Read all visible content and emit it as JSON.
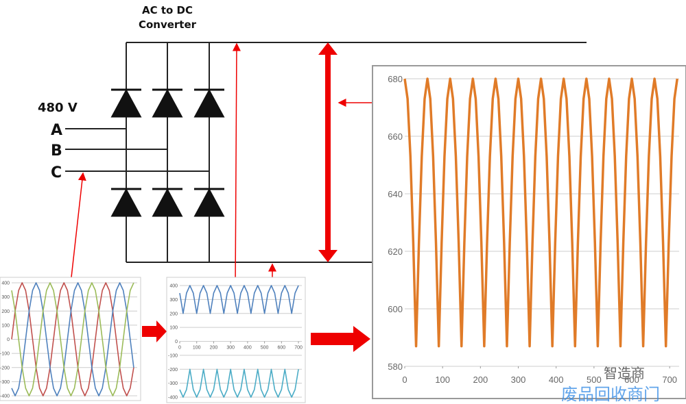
{
  "circuit": {
    "title_lines": [
      "AC to DC",
      "Converter"
    ],
    "voltage": "480 V",
    "phases": [
      "A",
      "B",
      "C"
    ]
  },
  "charts": [
    {
      "type": "line",
      "ylim": [
        -400,
        400
      ],
      "yticks": [
        400,
        300,
        200,
        100,
        0,
        -100,
        -200,
        -300,
        -400
      ],
      "xlim": [
        0,
        720
      ],
      "x": [
        0,
        20,
        40,
        60,
        80,
        100,
        120,
        140,
        160,
        180,
        200,
        220,
        240,
        260,
        280,
        300,
        320,
        340,
        360,
        380,
        400,
        420,
        440,
        460,
        480,
        500,
        520,
        540,
        560,
        580,
        600,
        620,
        640,
        660,
        680,
        700
      ],
      "series": [
        {
          "color": "#c0504d",
          "values": [
            0,
            200,
            346,
            400,
            346,
            200,
            0,
            -200,
            -346,
            -400,
            -346,
            -200,
            0,
            200,
            346,
            400,
            346,
            200,
            0,
            -200,
            -346,
            -400,
            -346,
            -200,
            0,
            200,
            346,
            400,
            346,
            200,
            0,
            -200,
            -346,
            -400,
            -346,
            -200
          ]
        },
        {
          "color": "#4f81bd",
          "values": [
            -346,
            -400,
            -346,
            -200,
            0,
            200,
            346,
            400,
            346,
            200,
            0,
            -200,
            -346,
            -400,
            -346,
            -200,
            0,
            200,
            346,
            400,
            346,
            200,
            0,
            -200,
            -346,
            -400,
            -346,
            -200,
            0,
            200,
            346,
            400,
            346,
            200,
            0,
            -200
          ]
        },
        {
          "color": "#9bbb59",
          "values": [
            346,
            200,
            0,
            -200,
            -346,
            -400,
            -346,
            -200,
            0,
            200,
            346,
            400,
            346,
            200,
            0,
            -200,
            -346,
            -400,
            -346,
            -200,
            0,
            200,
            346,
            400,
            346,
            200,
            0,
            -200,
            -346,
            -400,
            -346,
            -200,
            0,
            200,
            346,
            400
          ]
        }
      ]
    },
    {
      "type": "line",
      "ylim": [
        -400,
        400
      ],
      "yticks": [
        400,
        300,
        200,
        100,
        0,
        -100,
        -200,
        -300,
        -400
      ],
      "xlim": [
        0,
        720
      ],
      "xticks": [
        0,
        100,
        200,
        300,
        400,
        500,
        600,
        700
      ],
      "x": [
        0,
        20,
        40,
        60,
        80,
        100,
        120,
        140,
        160,
        180,
        200,
        220,
        240,
        260,
        280,
        300,
        320,
        340,
        360,
        380,
        400,
        420,
        440,
        460,
        480,
        500,
        520,
        540,
        560,
        580,
        600,
        620,
        640,
        660,
        680,
        700
      ],
      "series": [
        {
          "color": "#4f81bd",
          "values": [
            346,
            200,
            346,
            400,
            346,
            200,
            346,
            400,
            346,
            200,
            346,
            400,
            346,
            200,
            346,
            400,
            346,
            200,
            346,
            400,
            346,
            200,
            346,
            400,
            346,
            200,
            346,
            400,
            346,
            200,
            346,
            400,
            346,
            200,
            346,
            400
          ]
        },
        {
          "color": "#4bacc6",
          "values": [
            -346,
            -400,
            -346,
            -200,
            -346,
            -400,
            -346,
            -200,
            -346,
            -400,
            -346,
            -200,
            -346,
            -400,
            -346,
            -200,
            -346,
            -400,
            -346,
            -200,
            -346,
            -400,
            -346,
            -200,
            -346,
            -400,
            -346,
            -200,
            -346,
            -400,
            -346,
            -200,
            -346,
            -400,
            -346,
            -200
          ]
        }
      ]
    },
    {
      "type": "line",
      "ylim": [
        580,
        680
      ],
      "yticks": [
        680,
        660,
        640,
        620,
        600,
        580
      ],
      "xlim": [
        0,
        725
      ],
      "xticks": [
        0,
        100,
        200,
        300,
        400,
        500,
        600,
        700
      ],
      "x": [
        0,
        7.5,
        15,
        22.5,
        30,
        37.5,
        45,
        52.5,
        60,
        67.5,
        75,
        82.5,
        90,
        97.5,
        105,
        112.5,
        120,
        127.5,
        135,
        142.5,
        150,
        157.5,
        165,
        172.5,
        180,
        187.5,
        195,
        202.5,
        210,
        217.5,
        225,
        232.5,
        240,
        247.5,
        255,
        262.5,
        270,
        277.5,
        285,
        292.5,
        300,
        307.5,
        315,
        322.5,
        330,
        337.5,
        345,
        352.5,
        360,
        367.5,
        375,
        382.5,
        390,
        397.5,
        405,
        412.5,
        420,
        427.5,
        435,
        442.5,
        450,
        457.5,
        465,
        472.5,
        480,
        487.5,
        495,
        502.5,
        510,
        517.5,
        525,
        532.5,
        540,
        547.5,
        555,
        562.5,
        570,
        577.5,
        585,
        592.5,
        600,
        607.5,
        615,
        622.5,
        630,
        637.5,
        645,
        652.5,
        660,
        667.5,
        675,
        682.5,
        690,
        697.5,
        705,
        712.5,
        720
      ],
      "series": [
        {
          "color": "#e07b28",
          "values": [
            680,
            673,
            653,
            623,
            587,
            623,
            653,
            673,
            680,
            673,
            653,
            623,
            587,
            623,
            653,
            673,
            680,
            673,
            653,
            623,
            587,
            623,
            653,
            673,
            680,
            673,
            653,
            623,
            587,
            623,
            653,
            673,
            680,
            673,
            653,
            623,
            587,
            623,
            653,
            673,
            680,
            673,
            653,
            623,
            587,
            623,
            653,
            673,
            680,
            673,
            653,
            623,
            587,
            623,
            653,
            673,
            680,
            673,
            653,
            623,
            587,
            623,
            653,
            673,
            680,
            673,
            653,
            623,
            587,
            623,
            653,
            673,
            680,
            673,
            653,
            623,
            587,
            623,
            653,
            673,
            680,
            673,
            653,
            623,
            587,
            623,
            653,
            673,
            680,
            673,
            653,
            623,
            587,
            623,
            653,
            673,
            680
          ]
        }
      ]
    }
  ],
  "watermark": {
    "brand": "智造商",
    "site": "废品回收商门"
  }
}
